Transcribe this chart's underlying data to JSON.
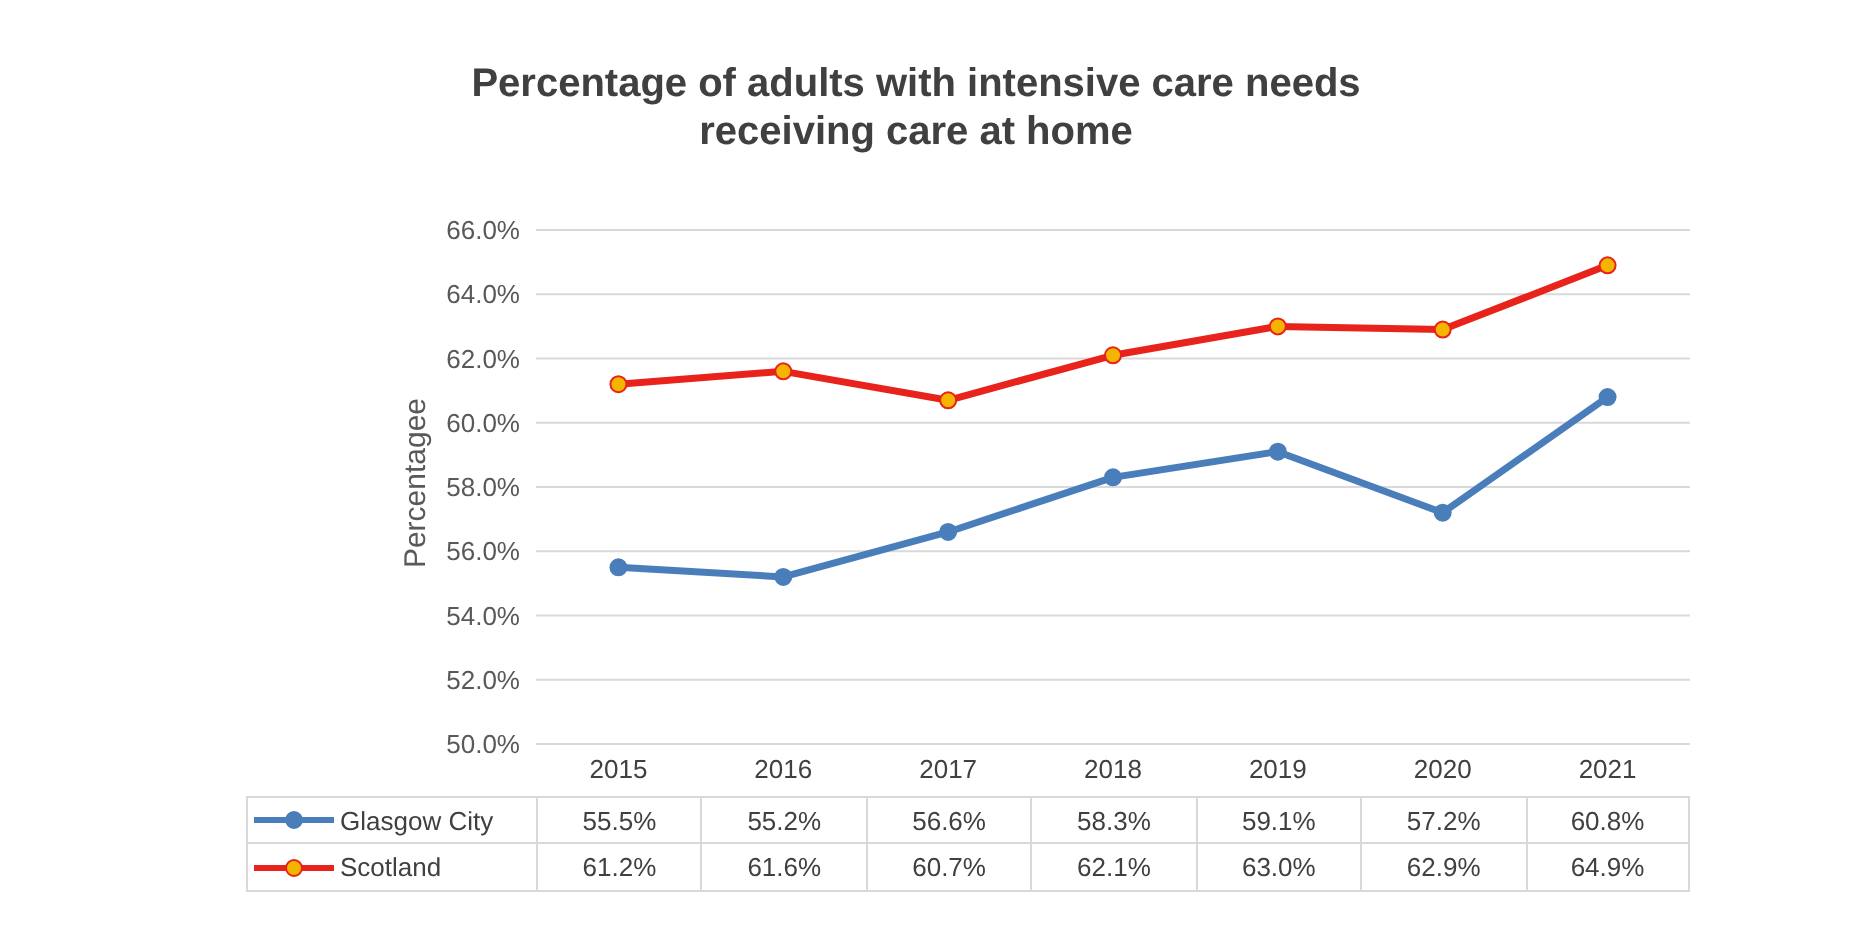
{
  "chart_data": {
    "type": "line",
    "title": "Percentage of adults with intensive care needs\nreceiving care at home",
    "ylabel": "Percentagee",
    "categories": [
      "2015",
      "2016",
      "2017",
      "2018",
      "2019",
      "2020",
      "2021"
    ],
    "series": [
      {
        "name": "Glasgow City",
        "color": "#4a7ebb",
        "values": [
          55.5,
          55.2,
          56.6,
          58.3,
          59.1,
          57.2,
          60.8
        ],
        "value_labels": [
          "55.5%",
          "55.2%",
          "56.6%",
          "58.3%",
          "59.1%",
          "57.2%",
          "60.8%"
        ]
      },
      {
        "name": "Scotland",
        "color": "#e8231b",
        "values": [
          61.2,
          61.6,
          60.7,
          62.1,
          63.0,
          62.9,
          64.9
        ],
        "value_labels": [
          "61.2%",
          "61.6%",
          "60.7%",
          "62.1%",
          "63.0%",
          "62.9%",
          "64.9%"
        ]
      }
    ],
    "ylim": [
      50,
      66
    ],
    "yticks": [
      {
        "value": 50,
        "label": "50.0%"
      },
      {
        "value": 52,
        "label": "52.0%"
      },
      {
        "value": 54,
        "label": "54.0%"
      },
      {
        "value": 56,
        "label": "56.0%"
      },
      {
        "value": 58,
        "label": "58.0%"
      },
      {
        "value": 60,
        "label": "60.0%"
      },
      {
        "value": 62,
        "label": "62.0%"
      },
      {
        "value": 64,
        "label": "64.0%"
      },
      {
        "value": 66,
        "label": "66.0%"
      }
    ],
    "grid": "y",
    "legend": "bottom",
    "marker": "circle",
    "line_style": "solid"
  }
}
